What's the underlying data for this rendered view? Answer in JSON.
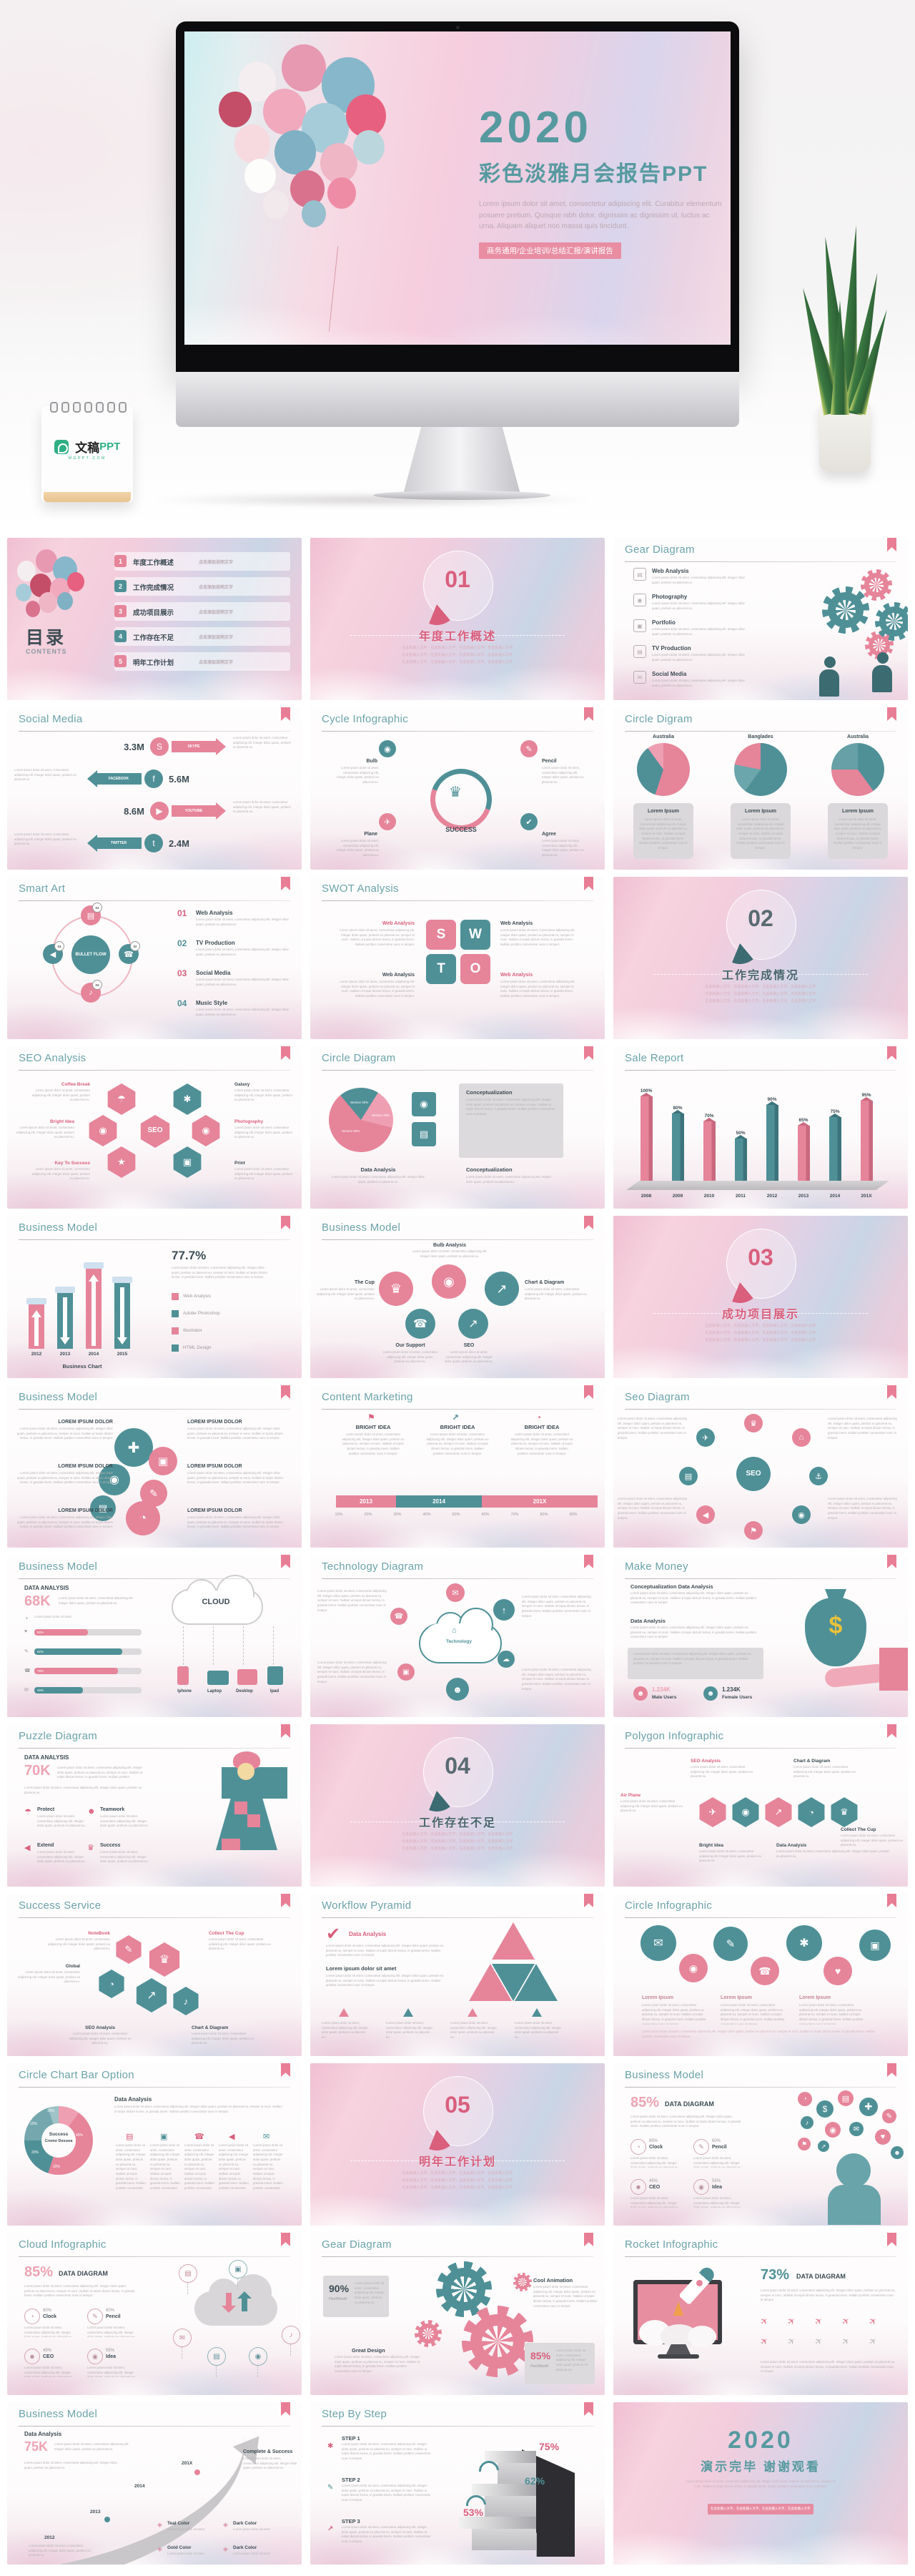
{
  "hero": {
    "slide": {
      "year": "2020",
      "title": "彩色淡雅月会报告PPT",
      "lorem": "Lorem ipsum dolor sit amet, consectetur adipiscing elit. Curabitur elementum posuere pretium. Quisque nibh dolor, dignissim ac dignissim ut, luctus ac urna. Aliquam aliquet non massa quis tincidunt.",
      "ribbon": "商务通用/企业培训/总结汇报/演讲报告"
    },
    "brand": {
      "cn": "文稿",
      "en": "PPT",
      "sub": "WGPPT.COM"
    }
  },
  "common": {
    "lorem_s": "Lorem ipsum dolor sit amet",
    "lorem_m": "Lorem ipsum dolor sit amet, consectetur adipiscing elit. Integer dolor quam, pretium eu placerat eu.",
    "lorem_l": "Lorem ipsum dolor sit amet, consectetur adipiscing elit. Integer dolor quam, pretium eu placerat eu, semper et nunc. Nullam ut turpis dictum lectus, in gravida lorem. Nullam porttitor consectetur nunc in tempor.",
    "zh": "在此处输入文字，在此处输入文字，在此处输入文字，在此处输入文字"
  },
  "icons": {
    "skype": "S",
    "facebook": "f",
    "twitter": "t",
    "youtube": "▶",
    "trophy": "♛",
    "bulb": "◉",
    "pencil": "✎",
    "plane": "✈",
    "check": "✔",
    "mail": "✉",
    "phone": "☎",
    "home": "⌂",
    "music": "♪",
    "star": "★",
    "umbrella": "☂",
    "anchor": "⚓",
    "flag": "⚑",
    "chart": "↗",
    "pie": "◔",
    "camera": "◉",
    "dollar": "$",
    "clock": "◔",
    "spark": "✱",
    "person": "☻",
    "heart": "♥",
    "image": "▣",
    "megaphone": "◀",
    "monitor": "▤",
    "upload": "↑",
    "plus": "✚",
    "cloud": "☁",
    "gem": "◈",
    "handshake": "✚"
  },
  "slides": [
    {
      "type": "contents",
      "title_cn": "目录",
      "title_en": "CONTENTS",
      "items": [
        {
          "n": "1",
          "label": "年度工作概述",
          "cap": "点击添加说明文字"
        },
        {
          "n": "2",
          "label": "工作完成情况",
          "cap": "点击添加说明文字"
        },
        {
          "n": "3",
          "label": "成功项目展示",
          "cap": "点击添加说明文字"
        },
        {
          "n": "4",
          "label": "工作存在不足",
          "cap": "点击添加说明文字"
        },
        {
          "n": "5",
          "label": "明年工作计划",
          "cap": "点击添加说明文字"
        }
      ]
    },
    {
      "type": "section",
      "num": "01",
      "title": "年度工作概述",
      "accent": "pink"
    },
    {
      "type": "gearlist",
      "title": "Gear Diagram",
      "items": [
        "Web Analysis",
        "Photography",
        "Portfolio",
        "TV Production",
        "Social Media"
      ]
    },
    {
      "type": "social",
      "title": "Social Media",
      "stats": [
        {
          "value": "3.3M",
          "label": "SKYPE"
        },
        {
          "value": "5.6M",
          "label": "FACEBOOK"
        },
        {
          "value": "8.6M",
          "label": "YOUTUBE"
        },
        {
          "value": "2.4M",
          "label": "TWITTER"
        }
      ]
    },
    {
      "type": "cycle",
      "title": "Cycle Infographic",
      "center": "SUCCESS",
      "nodes": [
        "Bulb",
        "Pencil",
        "Plane",
        "Agree"
      ]
    },
    {
      "type": "pies3",
      "title": "Circle Digram",
      "pies": [
        "Australia",
        "Banglades",
        "Australia"
      ],
      "box": "Lorem Ipsum"
    },
    {
      "type": "smartart",
      "title": "Smart Art",
      "center": "BULLET FLOW",
      "items": [
        {
          "n": "01",
          "label": "Web Analysis"
        },
        {
          "n": "02",
          "label": "TV Production"
        },
        {
          "n": "03",
          "label": "Social Media"
        },
        {
          "n": "04",
          "label": "Music Style"
        }
      ]
    },
    {
      "type": "swot",
      "title": "SWOT Analysis",
      "letters": [
        "S",
        "W",
        "T",
        "O"
      ],
      "label": "Web Analysis"
    },
    {
      "type": "section",
      "num": "02",
      "title": "工作完成情况",
      "accent": "teal"
    },
    {
      "type": "seohex",
      "title": "SEO Analysis",
      "center": "SEO",
      "labels": [
        "Coffee Break",
        "Galaxy",
        "Bright Idea",
        "Photography",
        "Key To Success",
        "Print"
      ]
    },
    {
      "type": "pieboxes",
      "title": "Circle Diagram",
      "slices": [
        "Service 60%",
        "Service 20%",
        "Service 20%"
      ],
      "pie_values": [
        60,
        20,
        20
      ],
      "box1": "Conceptualization",
      "h1": "Data Analysis",
      "h2": "Conceptualization"
    },
    {
      "type": "salereport",
      "title": "Sale Report",
      "years": [
        "2008",
        "2009",
        "2010",
        "2011",
        "2012",
        "2013",
        "2014",
        "201X"
      ],
      "labels": [
        "100%",
        "80%",
        "70%",
        "50%",
        "90%",
        "65%",
        "75%",
        "95%"
      ],
      "values": [
        100,
        80,
        70,
        50,
        90,
        65,
        75,
        95
      ]
    },
    {
      "type": "bizchart",
      "title": "Business Model",
      "pct": "77.7%",
      "years": [
        "2012",
        "2013",
        "2014",
        "2015"
      ],
      "caption": "Business Chart",
      "legend": [
        "Web Analysis",
        "Adobe Photoshop",
        "Illustrator",
        "HTML Design"
      ]
    },
    {
      "type": "bizcircles",
      "title": "Business Model",
      "nodes": [
        "The Cup",
        "Bulb Analysis",
        "Chart & Diagram",
        "Our Support",
        "SEO"
      ]
    },
    {
      "type": "section",
      "num": "03",
      "title": "成功项目展示",
      "accent": "pink"
    },
    {
      "type": "lorem6",
      "title": "Business Model",
      "heading": "LOREM IPSUM DOLOR"
    },
    {
      "type": "marketing",
      "title": "Content Marketing",
      "col": "BRIGHT IDEA",
      "timeline": [
        "2013",
        "2014",
        "201X"
      ],
      "scale": [
        "10%",
        "20%",
        "30%",
        "40%",
        "50%",
        "60%",
        "70%",
        "80%",
        "90%"
      ]
    },
    {
      "type": "seoradial",
      "title": "Seo Diagram",
      "center": "SEO"
    },
    {
      "type": "datacloud",
      "title": "Business Model",
      "heading": "DATA ANALYSIS",
      "big": "68K",
      "bars": [
        "50%",
        "82%",
        "78%",
        "45%"
      ],
      "bar_values": [
        50,
        82,
        78,
        45
      ],
      "cloud": "CLOUD",
      "devices": [
        "Iphone",
        "Laptop",
        "Desktop",
        "Ipad"
      ]
    },
    {
      "type": "techcloud",
      "title": "Technology Diagram",
      "center": "Technology"
    },
    {
      "type": "money",
      "title": "Make Money",
      "h1": "Conceptualization Data Analysis",
      "h2": "Data Analysis",
      "stats": [
        {
          "value": "1.234K",
          "label": "Male Users"
        },
        {
          "value": "1.234K",
          "label": "Female Users"
        }
      ]
    },
    {
      "type": "puzzle",
      "title": "Puzzle Diagram",
      "heading": "DATA ANALYSIS",
      "big": "70K",
      "items": [
        "Protect",
        "Teamwork",
        "Extend",
        "Success"
      ]
    },
    {
      "type": "section",
      "num": "04",
      "title": "工作存在不足",
      "accent": "teal"
    },
    {
      "type": "polygon",
      "title": "Polygon Infographic",
      "labels": [
        "SEO Analysis",
        "Chart & Diagram",
        "Air Plane",
        "Collect The Cup",
        "Bright Idea",
        "Data Analysis"
      ]
    },
    {
      "type": "successhex",
      "title": "Success Service",
      "labels": [
        "NoteBook",
        "Collect The Cup",
        "Global",
        "SEO Analysis",
        "Chart & Diagram"
      ]
    },
    {
      "type": "pyramid",
      "title": "Workflow Pyramid",
      "h1": "Data Analysis",
      "h2": "Lorem ipsum dolor sit amet"
    },
    {
      "type": "circles7",
      "title": "Circle Infographic",
      "col": "Lorem Ipsum"
    },
    {
      "type": "donut",
      "title": "Circle Chart Bar Option",
      "center1": "Success",
      "center2": "Cremo Desona",
      "h1": "Data Analysis",
      "slice_labels": [
        "10%",
        "15%",
        "20%",
        "20%",
        "45%"
      ],
      "slice_values": [
        10,
        15,
        20,
        20,
        45
      ]
    },
    {
      "type": "section",
      "num": "05",
      "title": "明年工作计划",
      "accent": "pink"
    },
    {
      "type": "headbubbles",
      "title": "Business Model",
      "big": "85%",
      "heading": "DATA DIAGRAM",
      "stats": [
        {
          "label": "Clock",
          "value": "85%"
        },
        {
          "label": "Pencil",
          "value": "60%"
        },
        {
          "label": "CEO",
          "value": "45%"
        },
        {
          "label": "Idea",
          "value": "55%"
        }
      ]
    },
    {
      "type": "cloudinfo",
      "title": "Cloud Infographic",
      "big": "85%",
      "heading": "DATA DIAGRAM",
      "stats": [
        {
          "label": "Clock",
          "value": "80%"
        },
        {
          "label": "Pencil",
          "value": "60%"
        },
        {
          "label": "CEO",
          "value": "45%"
        },
        {
          "label": "Idea",
          "value": "55%"
        }
      ]
    },
    {
      "type": "gears2",
      "title": "Gear Diagram",
      "stat1": "90%",
      "per": "Per/Month",
      "label1": "Cool Animation",
      "label2": "Great Design",
      "stat2": "85%"
    },
    {
      "type": "rocket",
      "title": "Rocket Infographic",
      "big": "73%",
      "heading": "DATA DIAGRAM"
    },
    {
      "type": "arrowgrowth",
      "title": "Business Model",
      "h1": "Data Analysis",
      "big": "75K",
      "years": [
        "2012",
        "2013",
        "2014",
        "201X"
      ],
      "head": "Complete & Success",
      "legend": [
        "Teal Color",
        "Dark Color",
        "Gold Color",
        "Dark Color"
      ]
    },
    {
      "type": "steps",
      "title": "Step By Step",
      "steps": [
        "STEP 1",
        "STEP 2",
        "STEP 3"
      ],
      "pcts": [
        "75%",
        "62%",
        "53%"
      ],
      "pct_values": [
        75,
        62,
        53
      ]
    },
    {
      "type": "closing",
      "year": "2020",
      "line": "演示完毕 谢谢观看"
    }
  ]
}
